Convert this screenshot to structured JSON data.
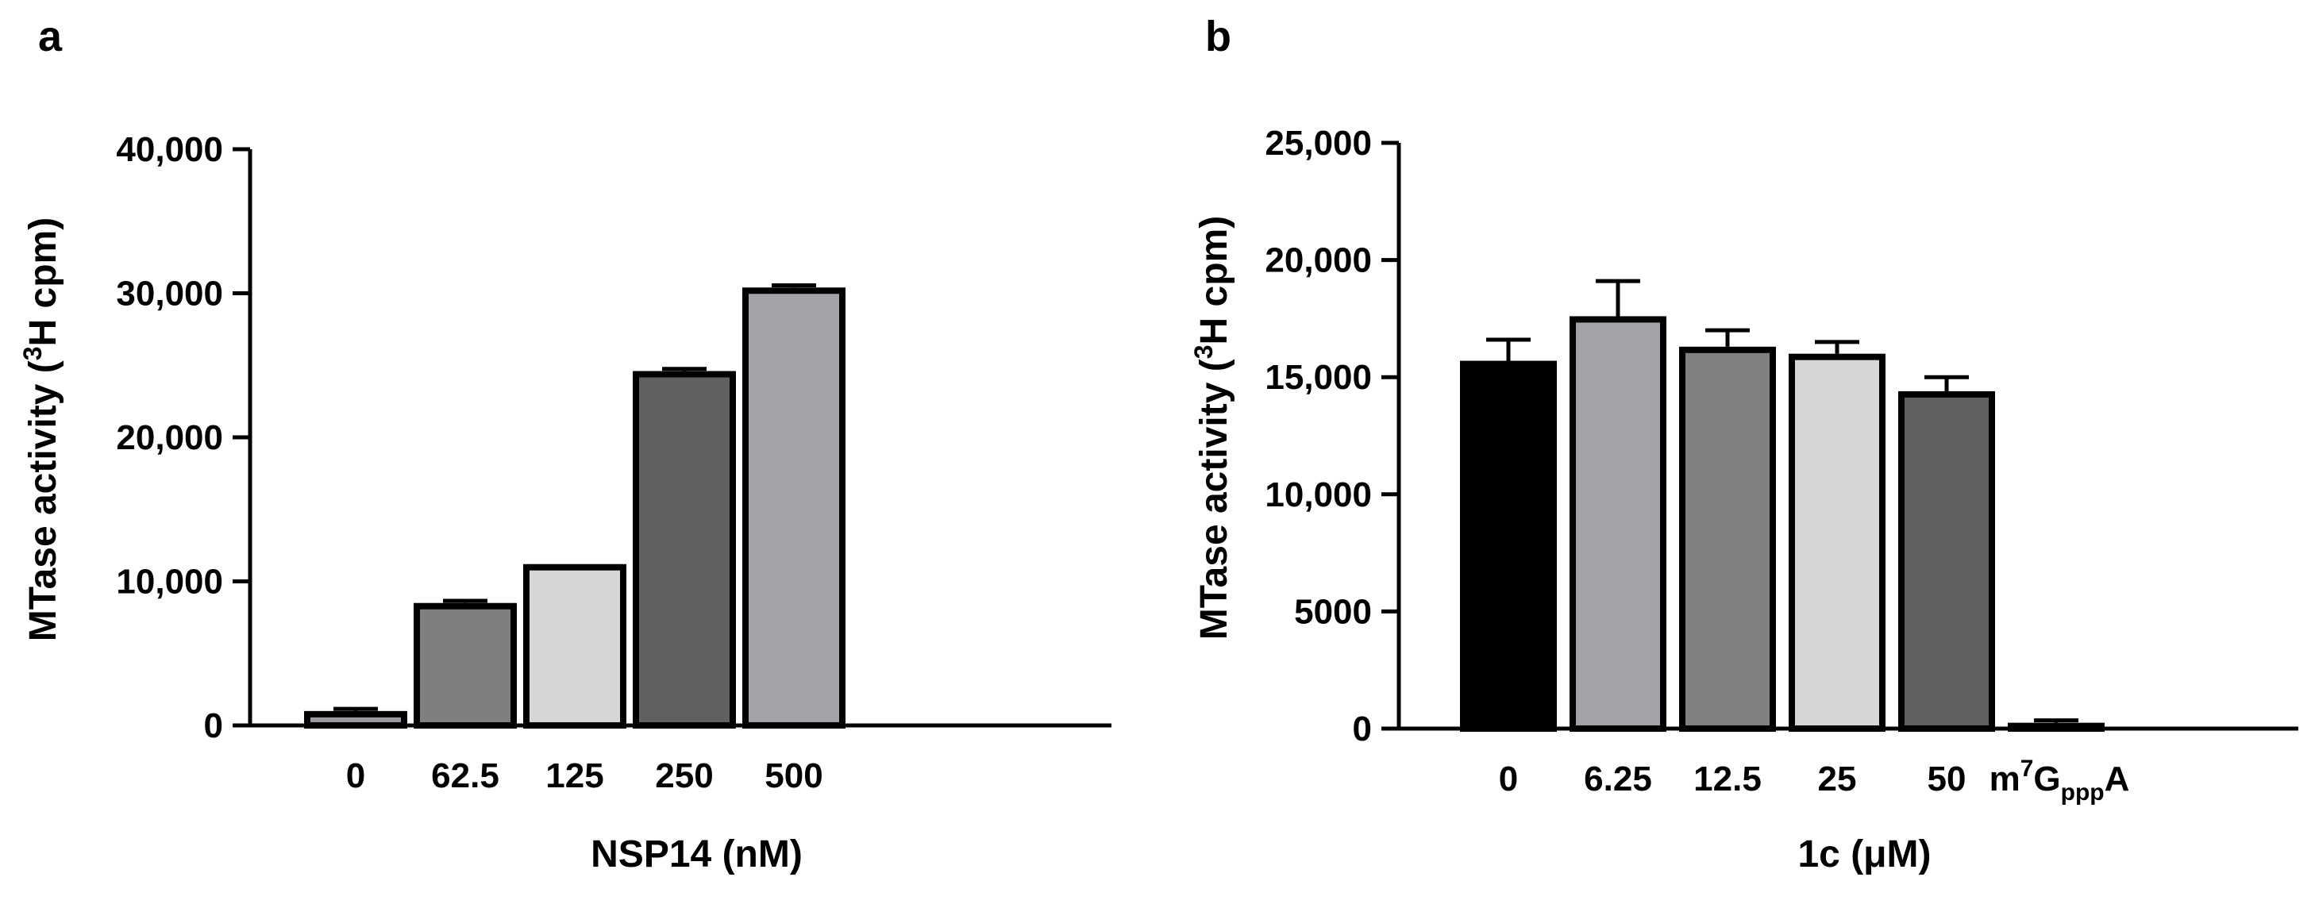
{
  "panels": {
    "a": {
      "label": "a"
    },
    "b": {
      "label": "b"
    }
  },
  "chart_data": [
    {
      "panel": "a",
      "type": "bar",
      "title": "",
      "xlabel": "NSP14 (nM)",
      "ylabel_main": "MTase activity (",
      "ylabel_sup": "3",
      "ylabel_tail": "H cpm)",
      "categories": [
        "0",
        "62.5",
        "125",
        "250",
        "500"
      ],
      "values": [
        1000,
        8500,
        11200,
        24600,
        30400
      ],
      "errors": [
        150,
        150,
        0,
        150,
        150
      ],
      "colors": [
        "#9a9aa0",
        "#7f7f7f",
        "#d6d6d6",
        "#606060",
        "#a2a2a8"
      ],
      "ylim": [
        0,
        40000
      ],
      "yticks": [
        0,
        10000,
        20000,
        30000,
        40000
      ],
      "ytick_labels": [
        "0",
        "10,000",
        "20,000",
        "30,000",
        "40,000"
      ]
    },
    {
      "panel": "b",
      "type": "bar",
      "title": "",
      "xlabel": "1c (μM)",
      "ylabel_main": "MTase activity (",
      "ylabel_sup": "3",
      "ylabel_tail": "H cpm)",
      "categories": [
        "0",
        "6.25",
        "12.5",
        "25",
        "50",
        "m7GpppA"
      ],
      "category_display": {
        "last": {
          "m": "m",
          "sup": "7",
          "G": "G",
          "sub": "ppp",
          "A": "A"
        }
      },
      "values": [
        15700,
        17600,
        16300,
        16000,
        14400,
        250
      ],
      "errors": [
        900,
        1500,
        700,
        500,
        600,
        100
      ],
      "colors": [
        "#000000",
        "#a2a2a8",
        "#808080",
        "#d6d6d6",
        "#606060",
        "#606060"
      ],
      "ylim": [
        0,
        25000
      ],
      "yticks": [
        0,
        5000,
        10000,
        15000,
        20000,
        25000
      ],
      "ytick_labels": [
        "0",
        "5000",
        "10,000",
        "15,000",
        "20,000",
        "25,000"
      ]
    }
  ]
}
